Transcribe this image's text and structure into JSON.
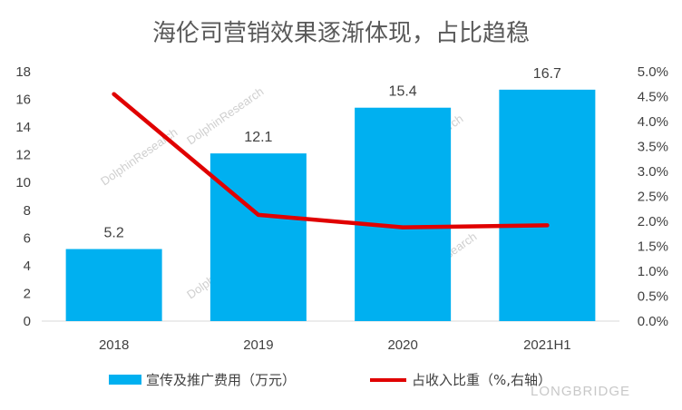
{
  "chart_data": {
    "type": "bar",
    "title": "海伦司营销效果逐渐体现，占比趋稳",
    "categories": [
      "2018",
      "2019",
      "2020",
      "2021H1"
    ],
    "series": [
      {
        "name": "宣传及推广费用（万元）",
        "type": "bar",
        "axis": "left",
        "color": "#00b0f0",
        "values": [
          5.2,
          12.1,
          15.4,
          16.7
        ],
        "data_labels": [
          "5.2",
          "12.1",
          "15.4",
          "16.7"
        ]
      },
      {
        "name": "占收入比重（%,右轴）",
        "type": "line",
        "axis": "right",
        "color": "#e00000",
        "values": [
          4.55,
          2.13,
          1.88,
          1.92
        ]
      }
    ],
    "y_left": {
      "lim": [
        0,
        18
      ],
      "ticks": [
        "0",
        "2",
        "4",
        "6",
        "8",
        "10",
        "12",
        "14",
        "16",
        "18"
      ]
    },
    "y_right": {
      "lim": [
        0,
        5
      ],
      "ticks": [
        "0.0%",
        "0.5%",
        "1.0%",
        "1.5%",
        "2.0%",
        "2.5%",
        "3.0%",
        "3.5%",
        "4.0%",
        "4.5%",
        "5.0%"
      ]
    },
    "grid": false,
    "legend_position": "bottom"
  },
  "watermarks": [
    "DolphinResearch",
    "LONGBRIDGE"
  ]
}
